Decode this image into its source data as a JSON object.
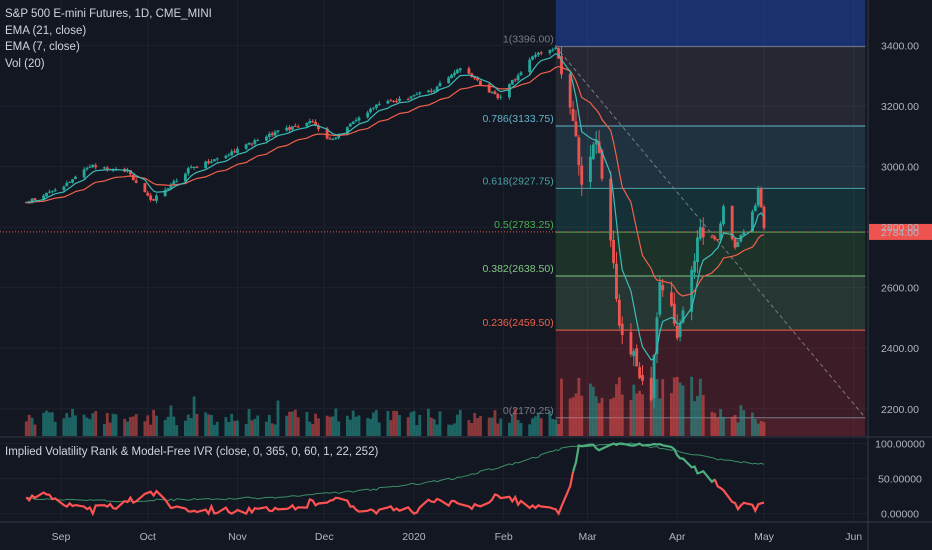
{
  "legend": {
    "symbol": "S&P 500 E-mini Futures, 1D, CME_MINI",
    "ema21": "EMA (21, close)",
    "ema7": "EMA (7, close)",
    "vol": "Vol (20)"
  },
  "indicator_label": "Implied Volatility Rank & Model-Free IVR (close, 0, 365, 0, 60, 1, 22, 252)",
  "colors": {
    "up": "#26a69a",
    "down": "#ef5350",
    "ema21": "#f0614a",
    "ema7": "#3dbcb6",
    "price_line": "#ef5350",
    "ivr_line": "#ff5252",
    "ivr_high": "#4caf7d",
    "mfivr_line": "#3b8f67"
  },
  "chart_data": [
    {
      "type": "candlestick",
      "title": "S&P 500 E-mini Futures, 1D, CME_MINI",
      "x_tick_labels": [
        "Sep",
        "Oct",
        "Nov",
        "Dec",
        "2020",
        "Feb",
        "Mar",
        "Apr",
        "May",
        "Jun"
      ],
      "y_tick_labels": [
        "2200.00",
        "2400.00",
        "2600.00",
        "2800.00",
        "3000.00",
        "3200.00",
        "3400.00"
      ],
      "ylim": [
        2110,
        3550
      ],
      "last_price": "2784.00",
      "anchors": [
        {
          "date": "Aug-20",
          "close": 2880
        },
        {
          "date": "Sep-01",
          "close": 2930
        },
        {
          "date": "Sep-12",
          "close": 3005
        },
        {
          "date": "Sep-24",
          "close": 2985
        },
        {
          "date": "Oct-02",
          "close": 2885
        },
        {
          "date": "Oct-15",
          "close": 2990
        },
        {
          "date": "Oct-28",
          "close": 3040
        },
        {
          "date": "Nov-15",
          "close": 3115
        },
        {
          "date": "Nov-27",
          "close": 3150
        },
        {
          "date": "Dec-03",
          "close": 3085
        },
        {
          "date": "Dec-19",
          "close": 3205
        },
        {
          "date": "Dec-31",
          "close": 3230
        },
        {
          "date": "Jan-08",
          "close": 3255
        },
        {
          "date": "Jan-17",
          "close": 3330
        },
        {
          "date": "Jan-30",
          "close": 3225
        },
        {
          "date": "Feb-12",
          "close": 3370
        },
        {
          "date": "Feb-19",
          "close": 3390
        },
        {
          "date": "Feb-24",
          "close": 3220
        },
        {
          "date": "Feb-28",
          "close": 2950
        },
        {
          "date": "Mar-04",
          "close": 3110
        },
        {
          "date": "Mar-09",
          "close": 2740
        },
        {
          "date": "Mar-12",
          "close": 2480
        },
        {
          "date": "Mar-16",
          "close": 2390
        },
        {
          "date": "Mar-20",
          "close": 2300
        },
        {
          "date": "Mar-23",
          "close": 2230
        },
        {
          "date": "Mar-26",
          "close": 2620
        },
        {
          "date": "Apr-01",
          "close": 2460
        },
        {
          "date": "Apr-09",
          "close": 2780
        },
        {
          "date": "Apr-15",
          "close": 2760
        },
        {
          "date": "Apr-17",
          "close": 2870
        },
        {
          "date": "Apr-21",
          "close": 2730
        },
        {
          "date": "Apr-28",
          "close": 2870
        },
        {
          "date": "Apr-29",
          "close": 2930
        },
        {
          "date": "May-01",
          "close": 2800
        }
      ],
      "fib_levels": [
        {
          "label": "1(3396.00)",
          "value": 3396.0,
          "color": "#787b86"
        },
        {
          "label": "0.786(3133.75)",
          "value": 3133.75,
          "color": "#5fb4c9"
        },
        {
          "label": "0.618(2927.75)",
          "value": 2927.75,
          "color": "#4aa3a8"
        },
        {
          "label": "0.5(2783.25)",
          "value": 2783.25,
          "color": "#4caf50"
        },
        {
          "label": "0.382(2638.50)",
          "value": 2638.5,
          "color": "#81c784"
        },
        {
          "label": "0.236(2459.50)",
          "value": 2459.5,
          "color": "#f0614a"
        },
        {
          "label": "0(2170.25)",
          "value": 2170.25,
          "color": "#787b86"
        }
      ],
      "fib_range": {
        "start_date": "Feb-19",
        "end_date": "Jun-05"
      }
    },
    {
      "type": "line",
      "title": "Implied Volatility Rank & Model-Free IVR (close, 0, 365, 0, 60, 1, 22, 252)",
      "y_tick_labels": [
        "0.00000",
        "50.00000",
        "100.00000"
      ],
      "ylim": [
        -12,
        108
      ],
      "series": [
        {
          "values_ivr": [
            {
              "date": "Aug-20",
              "v": 20
            },
            {
              "date": "Aug-27",
              "v": 32
            },
            {
              "date": "Sep-03",
              "v": 12
            },
            {
              "date": "Sep-10",
              "v": 4
            },
            {
              "date": "Sep-17",
              "v": 8
            },
            {
              "date": "Sep-24",
              "v": 15
            },
            {
              "date": "Oct-02",
              "v": 33
            },
            {
              "date": "Oct-10",
              "v": 10
            },
            {
              "date": "Oct-20",
              "v": 6
            },
            {
              "date": "Nov-01",
              "v": 4
            },
            {
              "date": "Nov-15",
              "v": 3
            },
            {
              "date": "Dec-03",
              "v": 22
            },
            {
              "date": "Dec-15",
              "v": 6
            },
            {
              "date": "Jan-01",
              "v": 4
            },
            {
              "date": "Jan-08",
              "v": 18
            },
            {
              "date": "Jan-20",
              "v": 8
            },
            {
              "date": "Jan-31",
              "v": 28
            },
            {
              "date": "Feb-10",
              "v": 10
            },
            {
              "date": "Feb-20",
              "v": 4
            },
            {
              "date": "Feb-24",
              "v": 35
            },
            {
              "date": "Feb-27",
              "v": 96
            },
            {
              "date": "Mar-03",
              "v": 97
            },
            {
              "date": "Mar-05",
              "v": 90
            },
            {
              "date": "Mar-09",
              "v": 100
            },
            {
              "date": "Mar-16",
              "v": 99
            },
            {
              "date": "Mar-30",
              "v": 97
            },
            {
              "date": "Apr-02",
              "v": 78
            },
            {
              "date": "Apr-08",
              "v": 62
            },
            {
              "date": "Apr-14",
              "v": 45
            },
            {
              "date": "Apr-20",
              "v": 12
            },
            {
              "date": "Apr-27",
              "v": 8
            },
            {
              "date": "May-01",
              "v": 15
            }
          ],
          "values_mfivr": [
            {
              "date": "Aug-20",
              "v": 22
            },
            {
              "date": "Sep-15",
              "v": 18
            },
            {
              "date": "Oct-15",
              "v": 20
            },
            {
              "date": "Nov-15",
              "v": 23
            },
            {
              "date": "Dec-15",
              "v": 33
            },
            {
              "date": "Jan-15",
              "v": 50
            },
            {
              "date": "Feb-05",
              "v": 72
            },
            {
              "date": "Feb-24",
              "v": 96
            },
            {
              "date": "Mar-16",
              "v": 100
            },
            {
              "date": "Apr-01",
              "v": 90
            },
            {
              "date": "Apr-15",
              "v": 78
            },
            {
              "date": "May-01",
              "v": 70
            }
          ]
        }
      ]
    }
  ]
}
